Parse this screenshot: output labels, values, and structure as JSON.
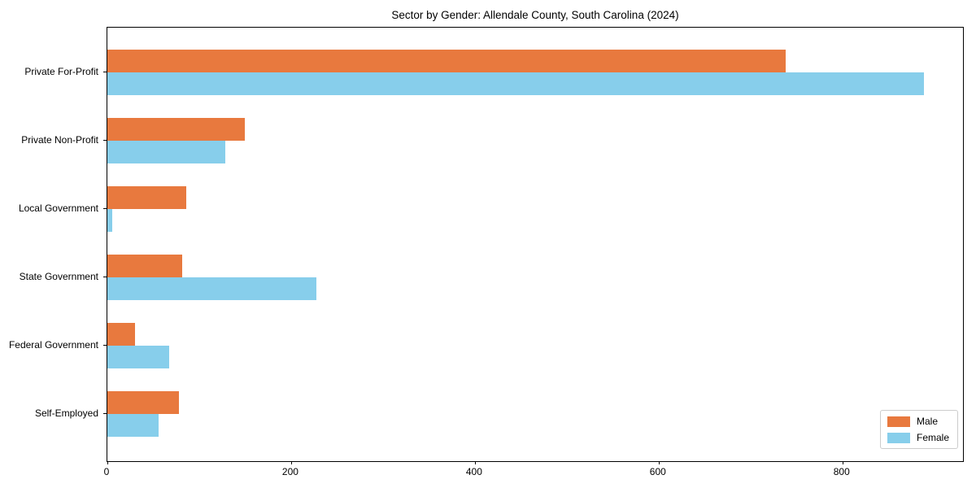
{
  "chart_data": {
    "type": "bar",
    "orientation": "horizontal",
    "title": "Sector by Gender: Allendale County, South Carolina (2024)",
    "categories": [
      "Private For-Profit",
      "Private Non-Profit",
      "Local Government",
      "State Government",
      "Federal Government",
      "Self-Employed"
    ],
    "series": [
      {
        "name": "Male",
        "color": "#e8793e",
        "values": [
          740,
          150,
          86,
          82,
          30,
          78
        ]
      },
      {
        "name": "Female",
        "color": "#87ceeb",
        "values": [
          890,
          129,
          5,
          228,
          67,
          56
        ]
      }
    ],
    "xlabel": "",
    "ylabel": "",
    "xlim": [
      0,
      933
    ],
    "xticks": [
      0,
      200,
      400,
      600,
      800
    ],
    "grid": false,
    "legend": {
      "position": "lower right",
      "entries": [
        "Male",
        "Female"
      ]
    }
  },
  "colors": {
    "male": "#e8793e",
    "female": "#87ceeb",
    "spine": "#000000",
    "legend_border": "#cccccc",
    "background": "#ffffff"
  }
}
